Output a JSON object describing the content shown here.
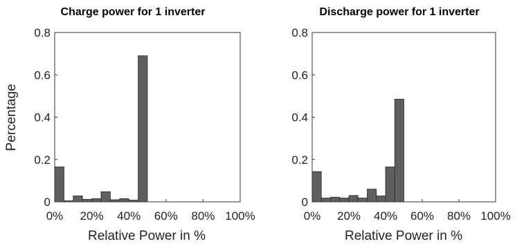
{
  "chart_data": [
    {
      "type": "bar",
      "title": "Charge power for 1 inverter",
      "xlabel": "Relative Power in %",
      "ylabel": "Percentage",
      "xlim": [
        0,
        100
      ],
      "ylim": [
        0,
        0.8
      ],
      "xticks": [
        "0%",
        "20%",
        "40%",
        "60%",
        "80%",
        "100%"
      ],
      "yticks": [
        "0",
        "0.2",
        "0.4",
        "0.6",
        "0.8"
      ],
      "bin_width": 5,
      "bins": [
        {
          "from": 0,
          "to": 5,
          "value": 0.165
        },
        {
          "from": 5,
          "to": 10,
          "value": 0.005
        },
        {
          "from": 10,
          "to": 15,
          "value": 0.028
        },
        {
          "from": 15,
          "to": 20,
          "value": 0.012
        },
        {
          "from": 20,
          "to": 25,
          "value": 0.015
        },
        {
          "from": 25,
          "to": 30,
          "value": 0.048
        },
        {
          "from": 30,
          "to": 35,
          "value": 0.01
        },
        {
          "from": 35,
          "to": 40,
          "value": 0.015
        },
        {
          "from": 40,
          "to": 45,
          "value": 0.008
        },
        {
          "from": 45,
          "to": 50,
          "value": 0.69
        }
      ]
    },
    {
      "type": "bar",
      "title": "Discharge power for 1 inverter",
      "xlabel": "Relative Power in %",
      "ylabel": "",
      "xlim": [
        0,
        100
      ],
      "ylim": [
        0,
        0.8
      ],
      "xticks": [
        "0%",
        "20%",
        "40%",
        "60%",
        "80%",
        "100%"
      ],
      "yticks": [
        "0",
        "0.2",
        "0.4",
        "0.6",
        "0.8"
      ],
      "bin_width": 5,
      "bins": [
        {
          "from": 0,
          "to": 5,
          "value": 0.143
        },
        {
          "from": 5,
          "to": 10,
          "value": 0.018
        },
        {
          "from": 10,
          "to": 15,
          "value": 0.022
        },
        {
          "from": 15,
          "to": 20,
          "value": 0.018
        },
        {
          "from": 20,
          "to": 25,
          "value": 0.03
        },
        {
          "from": 25,
          "to": 30,
          "value": 0.018
        },
        {
          "from": 30,
          "to": 35,
          "value": 0.06
        },
        {
          "from": 35,
          "to": 40,
          "value": 0.028
        },
        {
          "from": 40,
          "to": 45,
          "value": 0.165
        },
        {
          "from": 45,
          "to": 50,
          "value": 0.485
        }
      ]
    }
  ]
}
